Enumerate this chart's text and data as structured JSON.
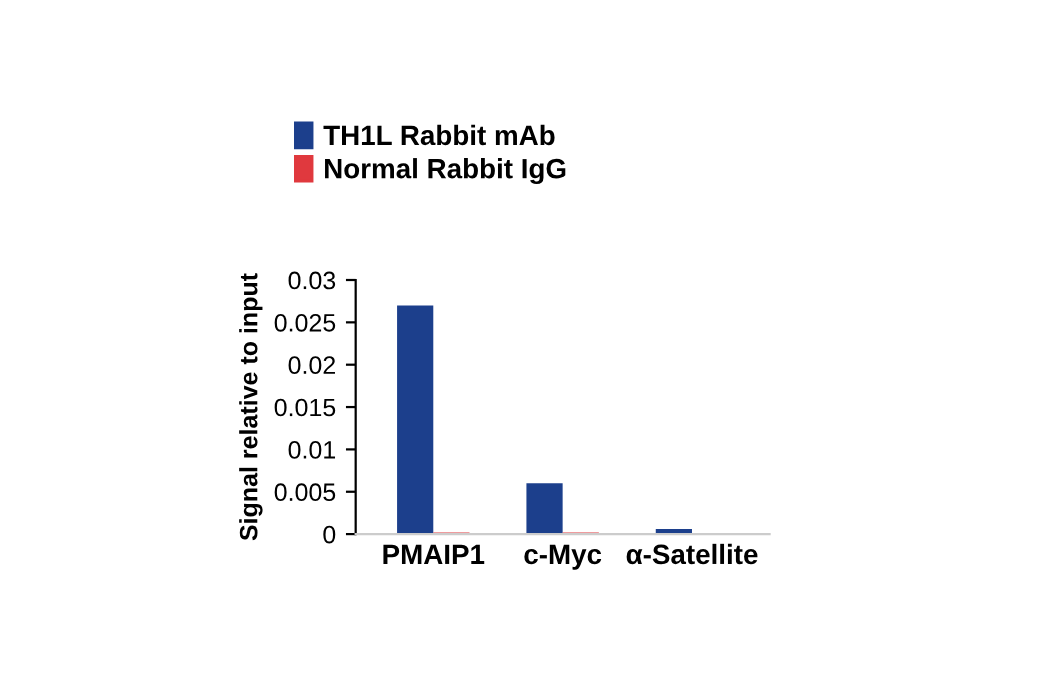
{
  "chart_data": {
    "type": "bar",
    "ylabel": "Signal relative to input",
    "categories": [
      "PMAIP1",
      "c-Myc",
      "α-Satellite"
    ],
    "series": [
      {
        "name": "TH1L Rabbit mAb",
        "color": "#1c3f8c",
        "values": [
          0.027,
          0.006,
          0.0006
        ]
      },
      {
        "name": "Normal Rabbit IgG",
        "color": "#e0393e",
        "values": [
          0.0002,
          0.0002,
          null
        ]
      }
    ],
    "ylim": [
      0,
      0.03
    ],
    "yticks": [
      {
        "value": 0,
        "label": "0"
      },
      0.005,
      0.01,
      0.015,
      0.02,
      0.025,
      0.03
    ],
    "grid": false,
    "legend": "top"
  }
}
